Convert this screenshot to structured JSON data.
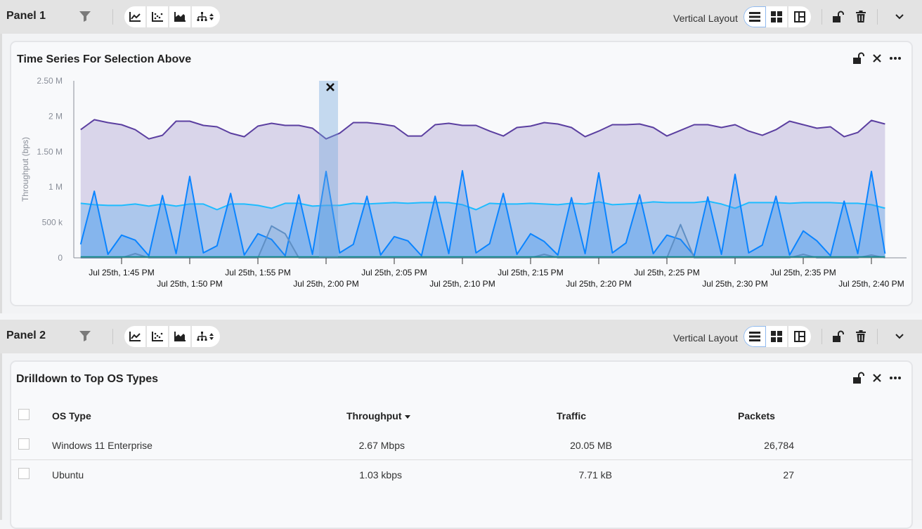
{
  "panels": [
    {
      "title": "Panel 1",
      "layout_label": "Vertical Layout",
      "chart_type_icons": [
        "line-chart-icon",
        "scatter-chart-icon",
        "area-chart-icon",
        "hierarchy-sort-icon"
      ],
      "layout_icons": [
        "list-layout-icon",
        "grid-layout-icon",
        "split-layout-icon"
      ],
      "selected_layout": "list-layout-icon"
    },
    {
      "title": "Panel 2",
      "layout_label": "Vertical Layout",
      "chart_type_icons": [
        "line-chart-icon",
        "scatter-chart-icon",
        "area-chart-icon",
        "hierarchy-sort-icon"
      ],
      "layout_icons": [
        "list-layout-icon",
        "grid-layout-icon",
        "split-layout-icon"
      ],
      "selected_layout": "list-layout-icon"
    }
  ],
  "chart_card": {
    "title": "Time Series For Selection Above"
  },
  "chart_data": {
    "type": "area",
    "title": "Time Series For Selection Above",
    "ylabel": "Throughput (bps)",
    "ylim": [
      0,
      2500000
    ],
    "y_ticks": [
      "0",
      "500 k",
      "1 M",
      "1.50 M",
      "2 M",
      "2.50 M"
    ],
    "x_tick_labels": [
      "Jul 25th, 1:45 PM",
      "Jul 25th, 1:50 PM",
      "Jul 25th, 1:55 PM",
      "Jul 25th, 2:00 PM",
      "Jul 25th, 2:05 PM",
      "Jul 25th, 2:10 PM",
      "Jul 25th, 2:15 PM",
      "Jul 25th, 2:20 PM",
      "Jul 25th, 2:25 PM",
      "Jul 25th, 2:30 PM",
      "Jul 25th, 2:35 PM",
      "Jul 25th, 2:40 PM"
    ],
    "x_start": "1:42 PM",
    "x_end": "2:41 PM",
    "x_interval": "1 min",
    "selection": "2:00 PM",
    "grid": false,
    "series": [
      {
        "color": "#5b3fa0",
        "fill": "#d9d5ea",
        "values": [
          1.81,
          1.95,
          1.91,
          1.88,
          1.81,
          1.68,
          1.73,
          1.93,
          1.93,
          1.87,
          1.85,
          1.76,
          1.71,
          1.86,
          1.9,
          1.87,
          1.87,
          1.83,
          1.68,
          1.76,
          1.91,
          1.91,
          1.89,
          1.86,
          1.72,
          1.72,
          1.88,
          1.9,
          1.87,
          1.87,
          1.79,
          1.72,
          1.84,
          1.86,
          1.91,
          1.89,
          1.84,
          1.71,
          1.79,
          1.88,
          1.88,
          1.89,
          1.84,
          1.72,
          1.8,
          1.88,
          1.88,
          1.84,
          1.88,
          1.79,
          1.73,
          1.81,
          1.93,
          1.88,
          1.83,
          1.85,
          1.71,
          1.77,
          1.94,
          1.89
        ]
      },
      {
        "color": "#1ebcff",
        "fill": "rgba(100,175,240,0.38)",
        "values": [
          0.77,
          0.75,
          0.74,
          0.74,
          0.76,
          0.73,
          0.76,
          0.73,
          0.76,
          0.76,
          0.68,
          0.76,
          0.76,
          0.74,
          0.7,
          0.77,
          0.77,
          0.73,
          0.74,
          0.74,
          0.77,
          0.76,
          0.77,
          0.78,
          0.77,
          0.78,
          0.78,
          0.78,
          0.75,
          0.68,
          0.77,
          0.76,
          0.76,
          0.77,
          0.76,
          0.75,
          0.77,
          0.76,
          0.79,
          0.75,
          0.76,
          0.77,
          0.79,
          0.78,
          0.78,
          0.78,
          0.8,
          0.76,
          0.7,
          0.78,
          0.78,
          0.78,
          0.77,
          0.78,
          0.78,
          0.78,
          0.77,
          0.77,
          0.75,
          0.7
        ]
      },
      {
        "color": "#0a84ff",
        "fill": "rgba(60,150,240,0.35)",
        "values": [
          0.19,
          0.94,
          0.05,
          0.32,
          0.25,
          0.03,
          0.88,
          0.06,
          1.15,
          0.07,
          0.17,
          0.91,
          0.04,
          0.34,
          0.26,
          0.03,
          0.89,
          0.05,
          1.22,
          0.07,
          0.19,
          0.87,
          0.04,
          0.3,
          0.24,
          0.03,
          0.87,
          0.06,
          1.23,
          0.07,
          0.2,
          0.91,
          0.05,
          0.34,
          0.23,
          0.04,
          0.85,
          0.06,
          1.2,
          0.07,
          0.21,
          0.89,
          0.06,
          0.32,
          0.26,
          0.03,
          0.86,
          0.05,
          1.18,
          0.07,
          0.18,
          0.87,
          0.04,
          0.38,
          0.24,
          0.03,
          0.8,
          0.06,
          1.22,
          0.06
        ]
      },
      {
        "color": "#5f8fc4",
        "fill": "rgba(95,143,196,0.15)",
        "values": [
          0,
          0,
          0,
          0,
          0.06,
          0,
          0,
          0,
          0,
          0,
          0,
          0,
          0,
          0,
          0.45,
          0.34,
          0,
          0,
          0,
          0,
          0,
          0,
          0,
          0,
          0,
          0,
          0,
          0,
          0,
          0,
          0,
          0,
          0,
          0,
          0.05,
          0,
          0,
          0,
          0,
          0,
          0,
          0,
          0,
          0,
          0.47,
          0,
          0,
          0,
          0,
          0,
          0,
          0,
          0,
          0.05,
          0,
          0,
          0,
          0,
          0.04,
          0
        ]
      },
      {
        "color": "#0e8a8a",
        "fill": "rgba(14,138,138,0.2)",
        "values": [
          0.01,
          0.01,
          0.01,
          0.01,
          0.01,
          0.01,
          0.01,
          0.01,
          0.01,
          0.01,
          0.01,
          0.01,
          0.01,
          0.01,
          0.01,
          0.01,
          0.01,
          0.01,
          0.01,
          0.01,
          0.01,
          0.01,
          0.01,
          0.01,
          0.01,
          0.01,
          0.01,
          0.01,
          0.01,
          0.01,
          0.01,
          0.01,
          0.01,
          0.01,
          0.01,
          0.01,
          0.01,
          0.01,
          0.01,
          0.01,
          0.01,
          0.01,
          0.01,
          0.01,
          0.01,
          0.01,
          0.01,
          0.01,
          0.01,
          0.01,
          0.01,
          0.01,
          0.01,
          0.01,
          0.01,
          0.01,
          0.01,
          0.01,
          0.01,
          0.01
        ]
      }
    ],
    "y_unit": "M"
  },
  "table_card": {
    "title": "Drilldown to Top OS Types",
    "columns": [
      "OS Type",
      "Throughput",
      "Traffic",
      "Packets"
    ],
    "sort_column": "Throughput",
    "sort_direction": "descending",
    "rows": [
      {
        "os": "Windows 11 Enterprise",
        "throughput": "2.67 Mbps",
        "traffic": "20.05 MB",
        "packets": "26,784"
      },
      {
        "os": "Ubuntu",
        "throughput": "1.03 kbps",
        "traffic": "7.71 kB",
        "packets": "27"
      }
    ]
  }
}
